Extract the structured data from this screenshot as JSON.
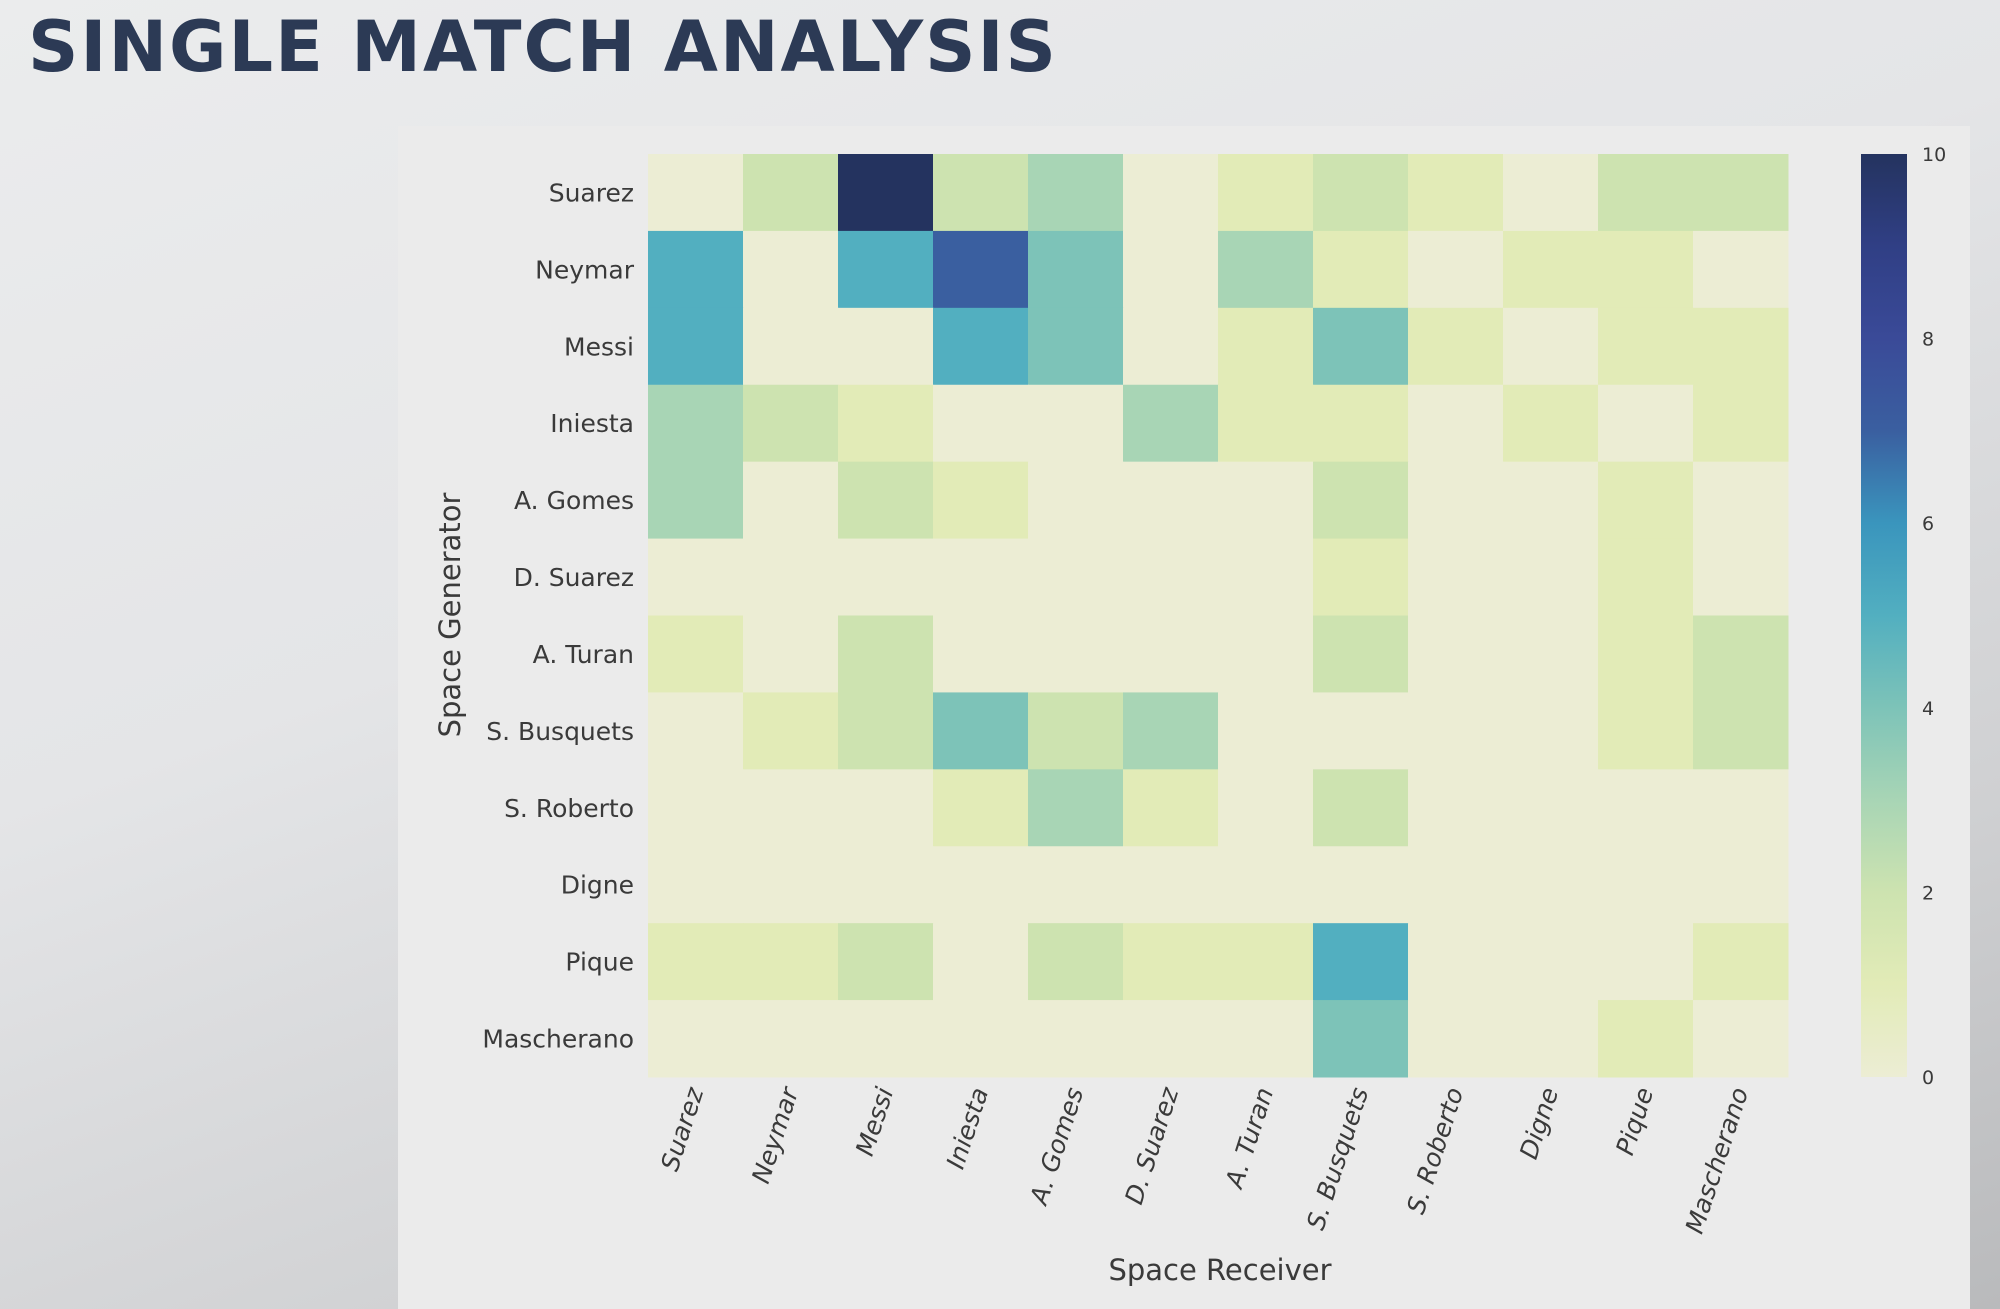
{
  "page": {
    "title": "SINGLE MATCH ANALYSIS"
  },
  "chart_data": {
    "type": "heatmap",
    "xlabel": "Space Receiver",
    "ylabel": "Space Generator",
    "x_categories": [
      "Suarez",
      "Neymar",
      "Messi",
      "Iniesta",
      "A. Gomes",
      "D. Suarez",
      "A. Turan",
      "S. Busquets",
      "S. Roberto",
      "Digne",
      "Pique",
      "Mascherano"
    ],
    "y_categories": [
      "Suarez",
      "Neymar",
      "Messi",
      "Iniesta",
      "A. Gomes",
      "D. Suarez",
      "A. Turan",
      "S. Busquets",
      "S. Roberto",
      "Digne",
      "Pique",
      "Mascherano"
    ],
    "values": [
      [
        0,
        2,
        10,
        2,
        3,
        0,
        1,
        2,
        1,
        0,
        2,
        2
      ],
      [
        5,
        0,
        5,
        7,
        4,
        0,
        3,
        1,
        0,
        1,
        1,
        0
      ],
      [
        5,
        0,
        0,
        5,
        4,
        0,
        1,
        4,
        1,
        0,
        1,
        1
      ],
      [
        3,
        2,
        1,
        0,
        0,
        3,
        1,
        1,
        0,
        1,
        0,
        1
      ],
      [
        3,
        0,
        2,
        1,
        0,
        0,
        0,
        2,
        0,
        0,
        1,
        0
      ],
      [
        0,
        0,
        0,
        0,
        0,
        0,
        0,
        1,
        0,
        0,
        1,
        0
      ],
      [
        1,
        0,
        2,
        0,
        0,
        0,
        0,
        2,
        0,
        0,
        1,
        2
      ],
      [
        0,
        1,
        2,
        4,
        2,
        3,
        0,
        0,
        0,
        0,
        1,
        2
      ],
      [
        0,
        0,
        0,
        1,
        3,
        1,
        0,
        2,
        0,
        0,
        0,
        0
      ],
      [
        0,
        0,
        0,
        0,
        0,
        0,
        0,
        0,
        0,
        0,
        0,
        0
      ],
      [
        1,
        1,
        2,
        0,
        2,
        1,
        1,
        5,
        0,
        0,
        0,
        1
      ],
      [
        0,
        0,
        0,
        0,
        0,
        0,
        0,
        4,
        0,
        0,
        1,
        0
      ]
    ],
    "colorbar": {
      "range": [
        0,
        10
      ],
      "ticks": [
        "0",
        "2",
        "4",
        "6",
        "8",
        "10"
      ],
      "colormap": "YlGnBu"
    },
    "colors": [
      "#ecedd4",
      "#e2ebb7",
      "#cde3b0",
      "#a8d5b5",
      "#7dc3b8",
      "#52afc0",
      "#3a95bd",
      "#3a5fa0",
      "#3a4a98",
      "#303f85",
      "#24335f"
    ]
  }
}
